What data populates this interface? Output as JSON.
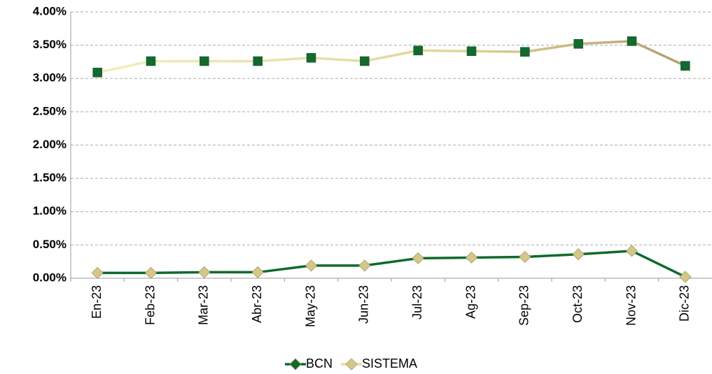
{
  "chart_data": {
    "type": "line",
    "categories": [
      "En-23",
      "Feb-23",
      "Mar-23",
      "Abr-23",
      "May-23",
      "Jun-23",
      "Jul-23",
      "Ag-23",
      "Sep-23",
      "Oct-23",
      "Nov-23",
      "Dic-23"
    ],
    "series": [
      {
        "name": "BCN",
        "color": "#0f6a2c",
        "marker": "diamond",
        "marker_color": "#d4c78a",
        "values": [
          0.08,
          0.08,
          0.09,
          0.09,
          0.19,
          0.19,
          0.3,
          0.31,
          0.32,
          0.36,
          0.41,
          0.02
        ]
      },
      {
        "name": "SISTEMA",
        "color": "#e6dba0",
        "marker": "square",
        "marker_color": "#13692f",
        "values": [
          3.09,
          3.26,
          3.26,
          3.26,
          3.31,
          3.26,
          3.42,
          3.41,
          3.4,
          3.52,
          3.56,
          3.19
        ]
      }
    ],
    "ylim": [
      0,
      4
    ],
    "yticks": [
      {
        "value": 0,
        "label": "0.00%"
      },
      {
        "value": 0.5,
        "label": "0.50%"
      },
      {
        "value": 1,
        "label": "1.00%"
      },
      {
        "value": 1.5,
        "label": "1.50%"
      },
      {
        "value": 2,
        "label": "2.00%"
      },
      {
        "value": 2.5,
        "label": "2.50%"
      },
      {
        "value": 3,
        "label": "3.00%"
      },
      {
        "value": 3.5,
        "label": "3.50%"
      },
      {
        "value": 4,
        "label": "4.00%"
      }
    ],
    "grid": true,
    "legend": "bottom"
  }
}
